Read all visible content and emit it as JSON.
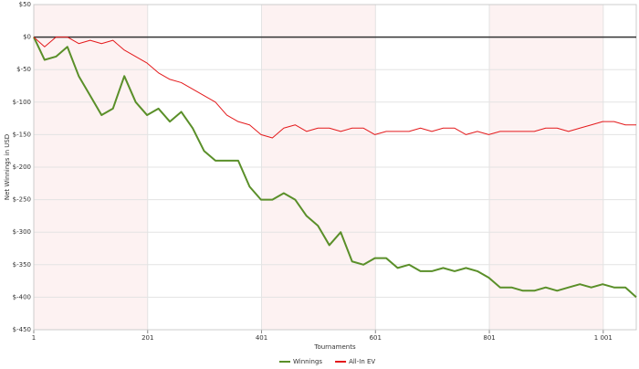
{
  "chart_data": {
    "type": "line",
    "y_label": "Net Winnings in USD",
    "x_label": "Tournaments",
    "xlim": [
      1,
      1059
    ],
    "xticks": [
      1,
      201,
      401,
      601,
      801,
      {
        "value": 1001,
        "label": "1 001"
      }
    ],
    "ylim": [
      -450,
      50
    ],
    "yticks": [
      {
        "value": 50,
        "label": "$50"
      },
      {
        "value": 0,
        "label": "$0"
      },
      {
        "value": -50,
        "label": "$-50"
      },
      {
        "value": -100,
        "label": "$-100"
      },
      {
        "value": -150,
        "label": "$-150"
      },
      {
        "value": -200,
        "label": "$-200"
      },
      {
        "value": -250,
        "label": "$-250"
      },
      {
        "value": -300,
        "label": "$-300"
      },
      {
        "value": -350,
        "label": "$-350"
      },
      {
        "value": -400,
        "label": "$-400"
      },
      {
        "value": -450,
        "label": "$-450"
      }
    ],
    "grid": true,
    "band_color": "#fdf2f2",
    "x": [
      1,
      20,
      40,
      60,
      80,
      100,
      120,
      140,
      160,
      180,
      200,
      220,
      240,
      260,
      280,
      300,
      320,
      340,
      360,
      380,
      400,
      420,
      440,
      460,
      480,
      500,
      520,
      540,
      560,
      580,
      600,
      620,
      640,
      660,
      680,
      700,
      720,
      740,
      760,
      780,
      800,
      820,
      840,
      860,
      880,
      900,
      920,
      940,
      960,
      980,
      1000,
      1020,
      1040,
      1059
    ],
    "series": [
      {
        "name": "Winnings",
        "color": "#5a8f29",
        "width": 2,
        "values": [
          0,
          -35,
          -30,
          -15,
          -60,
          -90,
          -120,
          -110,
          -60,
          -100,
          -120,
          -110,
          -130,
          -115,
          -140,
          -175,
          -190,
          -190,
          -190,
          -230,
          -250,
          -250,
          -240,
          -250,
          -275,
          -290,
          -320,
          -300,
          -345,
          -350,
          -340,
          -340,
          -355,
          -350,
          -360,
          -360,
          -355,
          -360,
          -355,
          -360,
          -370,
          -385,
          -385,
          -390,
          -390,
          -385,
          -390,
          -385,
          -380,
          -385,
          -380,
          -385,
          -385,
          -400
        ]
      },
      {
        "name": "All-In EV",
        "color": "#e41a1c",
        "width": 1,
        "values": [
          0,
          -15,
          0,
          0,
          -10,
          -5,
          -10,
          -5,
          -20,
          -30,
          -40,
          -55,
          -65,
          -70,
          -80,
          -90,
          -100,
          -120,
          -130,
          -135,
          -150,
          -155,
          -140,
          -135,
          -145,
          -140,
          -140,
          -145,
          -140,
          -140,
          -150,
          -145,
          -145,
          -145,
          -140,
          -145,
          -140,
          -140,
          -150,
          -145,
          -150,
          -145,
          -145,
          -145,
          -145,
          -140,
          -140,
          -145,
          -140,
          -135,
          -130,
          -130,
          -135,
          -135
        ]
      }
    ]
  }
}
